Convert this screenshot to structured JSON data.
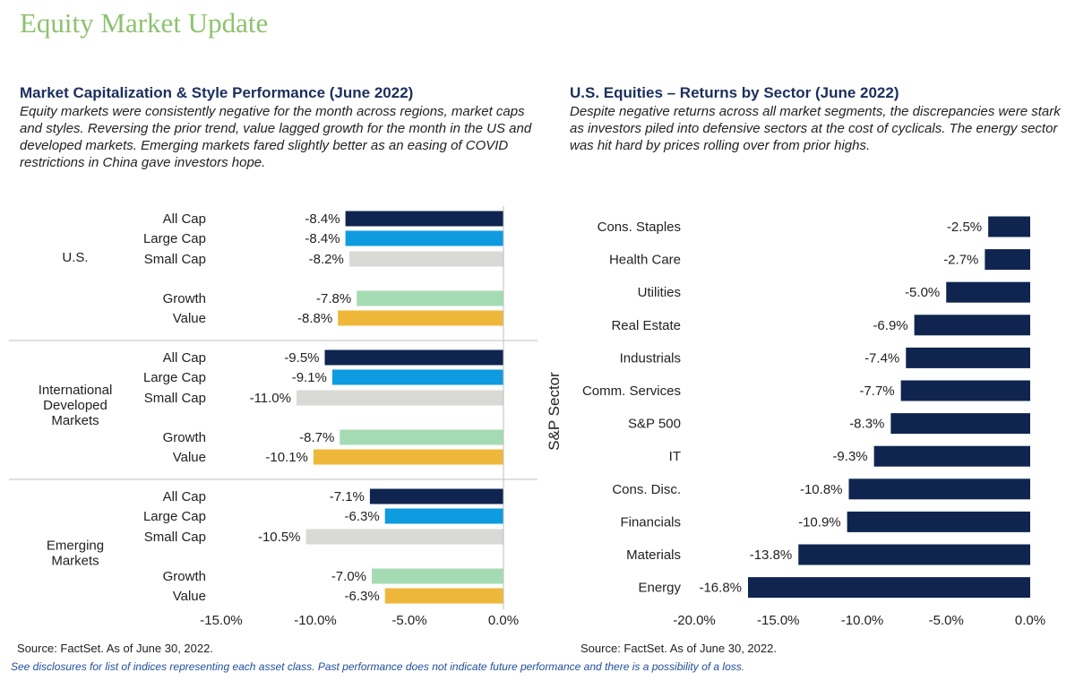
{
  "page": {
    "title": "Equity Market Update",
    "disclosure": "See disclosures for list of indices representing each asset class. Past performance does not indicate future performance and there is a possibility of a loss."
  },
  "left_panel": {
    "title": "Market Capitalization & Style Performance (June 2022)",
    "description": "Equity markets were consistently negative for the month across regions, market caps and styles. Reversing the prior trend, value lagged growth for the month in the US and developed markets. Emerging markets fared slightly better as an easing of COVID restrictions in China gave investors hope.",
    "source": "Source: FactSet. As of June 30, 2022."
  },
  "right_panel": {
    "title": "U.S. Equities – Returns by Sector (June 2022)",
    "description": "Despite negative returns across all market segments, the discrepancies were stark as investors piled into defensive sectors at the cost of cyclicals. The energy sector was hit hard by prices rolling over from prior highs.",
    "source": "Source: FactSet. As of June 30, 2022."
  },
  "colors": {
    "All Cap": "#0f2550",
    "Large Cap": "#0e9be0",
    "Small Cap": "#d9d9d6",
    "Growth": "#a5dbb3",
    "Value": "#efb73a",
    "sector_bar": "#0f2550",
    "divider": "#bfbfbf"
  },
  "chart_data": [
    {
      "type": "bar",
      "orientation": "horizontal",
      "groups": [
        {
          "name": "U.S.",
          "categories": [
            "All Cap",
            "Large Cap",
            "Small Cap",
            "Growth",
            "Value"
          ],
          "values": [
            -8.4,
            -8.4,
            -8.2,
            -7.8,
            -8.8
          ],
          "labels": [
            "-8.4%",
            "-8.4%",
            "-8.2%",
            "-7.8%",
            "-8.8%"
          ]
        },
        {
          "name": "International Developed Markets",
          "name_lines": [
            "International",
            "Developed",
            "Markets"
          ],
          "categories": [
            "All Cap",
            "Large Cap",
            "Small Cap",
            "Growth",
            "Value"
          ],
          "values": [
            -9.5,
            -9.1,
            -11.0,
            -8.7,
            -10.1
          ],
          "labels": [
            "-9.5%",
            "-9.1%",
            "-11.0%",
            "-8.7%",
            "-10.1%"
          ]
        },
        {
          "name": "Emerging Markets",
          "name_lines": [
            "Emerging",
            "Markets"
          ],
          "categories": [
            "All Cap",
            "Large Cap",
            "Small Cap",
            "Growth",
            "Value"
          ],
          "values": [
            -7.1,
            -6.3,
            -10.5,
            -7.0,
            -6.3
          ],
          "labels": [
            "-7.1%",
            "-6.3%",
            "-10.5%",
            "-7.0%",
            "-6.3%"
          ]
        }
      ],
      "xlim": [
        -15,
        0
      ],
      "xticks": [
        -15,
        -10,
        -5,
        0
      ],
      "xtick_labels": [
        "-15.0%",
        "-10.0%",
        "-5.0%",
        "0.0%"
      ],
      "grid": false,
      "legend": "none"
    },
    {
      "type": "bar",
      "orientation": "horizontal",
      "categories": [
        "Cons. Staples",
        "Health Care",
        "Utilities",
        "Real Estate",
        "Industrials",
        "Comm. Services",
        "S&P 500",
        "IT",
        "Cons. Disc.",
        "Financials",
        "Materials",
        "Energy"
      ],
      "values": [
        -2.5,
        -2.7,
        -5.0,
        -6.9,
        -7.4,
        -7.7,
        -8.3,
        -9.3,
        -10.8,
        -10.9,
        -13.8,
        -16.8
      ],
      "labels": [
        "-2.5%",
        "-2.7%",
        "-5.0%",
        "-6.9%",
        "-7.4%",
        "-7.7%",
        "-8.3%",
        "-9.3%",
        "-10.8%",
        "-10.9%",
        "-13.8%",
        "-16.8%"
      ],
      "ylabel": "S&P Sector",
      "xlim": [
        -20,
        0
      ],
      "xticks": [
        -20,
        -15,
        -10,
        -5,
        0
      ],
      "xtick_labels": [
        "-20.0%",
        "-15.0%",
        "-10.0%",
        "-5.0%",
        "0.0%"
      ],
      "grid": false,
      "legend": "none"
    }
  ]
}
